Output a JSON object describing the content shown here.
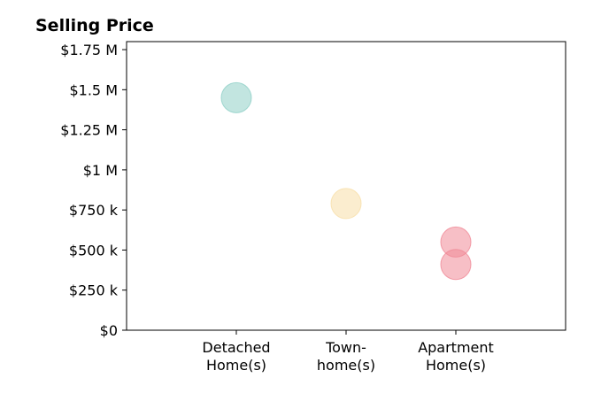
{
  "chart_data": {
    "type": "scatter",
    "title": "Selling Price",
    "xlabel": "",
    "ylabel": "",
    "categories": [
      [
        "Detached",
        "Home(s)"
      ],
      [
        "Town-",
        "home(s)"
      ],
      [
        "Apartment",
        "Home(s)"
      ]
    ],
    "ylim": [
      0,
      1800000
    ],
    "y_ticks": [
      {
        "value": 0,
        "label": "$0"
      },
      {
        "value": 250000,
        "label": "$250 k"
      },
      {
        "value": 500000,
        "label": "$500 k"
      },
      {
        "value": 750000,
        "label": "$750 k"
      },
      {
        "value": 1000000,
        "label": "$1 M"
      },
      {
        "value": 1250000,
        "label": "$1.25 M"
      },
      {
        "value": 1500000,
        "label": "$1.5 M"
      },
      {
        "value": 1750000,
        "label": "$1.75 M"
      }
    ],
    "points": [
      {
        "category_index": 0,
        "value": 1450000,
        "color": "#8fcfc7"
      },
      {
        "category_index": 1,
        "value": 790000,
        "color": "#f7dfa8"
      },
      {
        "category_index": 2,
        "value": 550000,
        "color": "#f08a97"
      },
      {
        "category_index": 2,
        "value": 410000,
        "color": "#f08a97"
      }
    ],
    "grid": false,
    "legend": "none"
  }
}
